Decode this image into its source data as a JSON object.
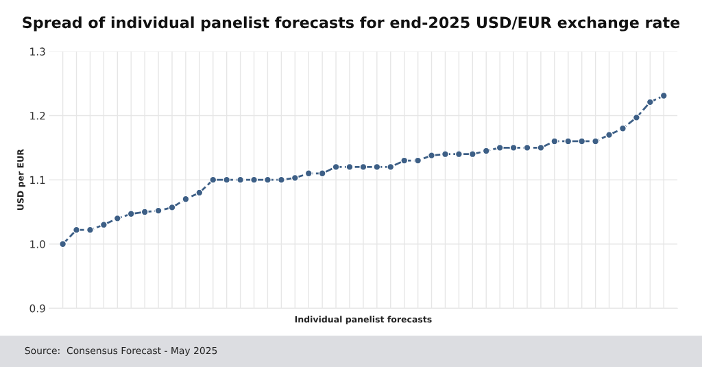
{
  "chart_data": {
    "type": "line",
    "title": "Spread of individual panelist forecasts for end-2025 USD/EUR exchange rate",
    "xlabel": "Individual panelist forecasts",
    "ylabel": "USD per EUR",
    "annotations": [
      "Source:  Consensus Forecast - May 2025"
    ],
    "categories": [
      null,
      null,
      null,
      null,
      null,
      null,
      null,
      null,
      null,
      null,
      null,
      null,
      null,
      null,
      null,
      null,
      null,
      null,
      null,
      null,
      null,
      null,
      null,
      null,
      null,
      null,
      null,
      null,
      null,
      null,
      null,
      null,
      null,
      null,
      null,
      null,
      null,
      null,
      null,
      null,
      null,
      null,
      null,
      null,
      null
    ],
    "series": [
      {
        "color": "#3d5f86",
        "values": [
          1.0,
          1.022,
          1.022,
          1.03,
          1.04,
          1.047,
          1.05,
          1.052,
          1.057,
          1.07,
          1.08,
          1.1,
          1.1,
          1.1,
          1.1,
          1.1,
          1.1,
          1.103,
          1.11,
          1.11,
          1.12,
          1.12,
          1.12,
          1.12,
          1.12,
          1.13,
          1.13,
          1.138,
          1.14,
          1.14,
          1.14,
          1.145,
          1.15,
          1.15,
          1.15,
          1.15,
          1.16,
          1.16,
          1.16,
          1.16,
          1.17,
          1.18,
          1.197,
          1.221,
          1.231
        ]
      }
    ],
    "ylim": [
      0.9,
      1.3
    ],
    "yticks": [
      0.9,
      {
        "value": 1.0,
        "label": "1.0"
      },
      1.1,
      1.2,
      1.3
    ],
    "grid": true,
    "marker": "circle",
    "line_style": "dashed",
    "tick_labels": "y"
  }
}
